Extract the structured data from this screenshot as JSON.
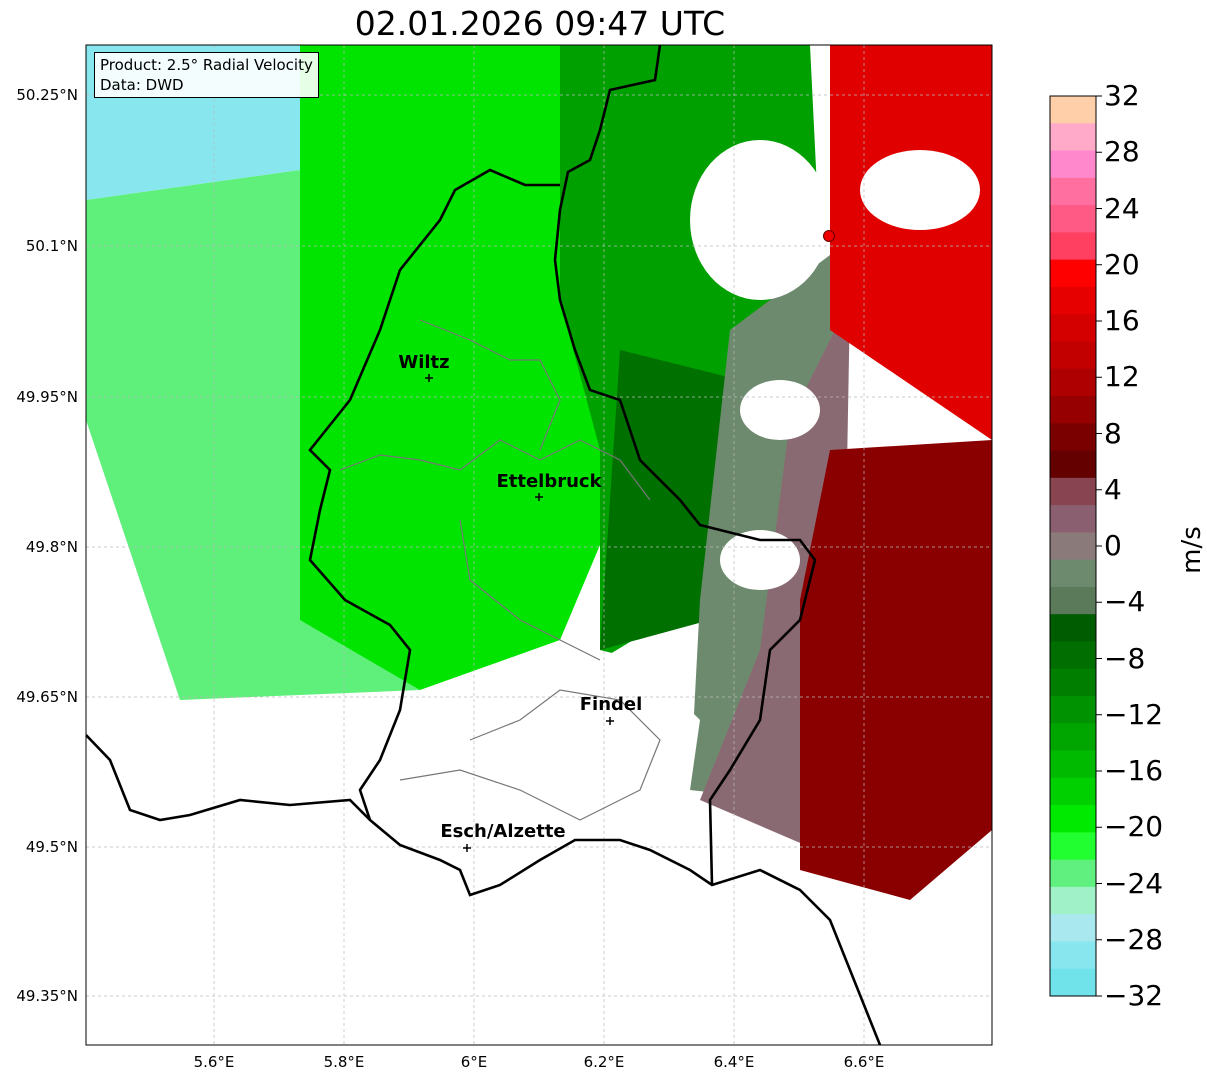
{
  "title": "02.01.2026 09:47 UTC",
  "info": {
    "product": "Product: 2.5° Radial Velocity",
    "data": "Data: DWD"
  },
  "lat_labels": [
    "50.25°N",
    "50.1°N",
    "49.95°N",
    "49.8°N",
    "49.65°N",
    "49.5°N",
    "49.35°N"
  ],
  "lon_labels": [
    "5.6°E",
    "5.8°E",
    "6°E",
    "6.2°E",
    "6.4°E",
    "6.6°E"
  ],
  "cities": [
    {
      "name": "Wiltz"
    },
    {
      "name": "Ettelbruck"
    },
    {
      "name": "Findel"
    },
    {
      "name": "Esch/Alzette"
    }
  ],
  "colorbar": {
    "unit": "m/s",
    "range": [
      -32,
      32
    ],
    "ticks": [
      "32",
      "28",
      "24",
      "20",
      "16",
      "12",
      "8",
      "4",
      "0",
      "−4",
      "−8",
      "−12",
      "−16",
      "−20",
      "−24",
      "−28",
      "−32"
    ],
    "colors": [
      "#ffcfaa",
      "#ffaac8",
      "#ff88cc",
      "#ff70a0",
      "#ff5a86",
      "#ff4060",
      "#ff0000",
      "#e60000",
      "#d40000",
      "#c20000",
      "#ae0000",
      "#960000",
      "#7a0000",
      "#640000",
      "#884450",
      "#8a6070",
      "#8a7a7a",
      "#6e8a6e",
      "#5a7a5a",
      "#005c00",
      "#006e00",
      "#007e00",
      "#009200",
      "#00a600",
      "#00ba00",
      "#00d000",
      "#00ea00",
      "#22ff30",
      "#60f080",
      "#a0f0c8",
      "#aae8ef",
      "#88e6ee",
      "#70e2ea"
    ]
  }
}
